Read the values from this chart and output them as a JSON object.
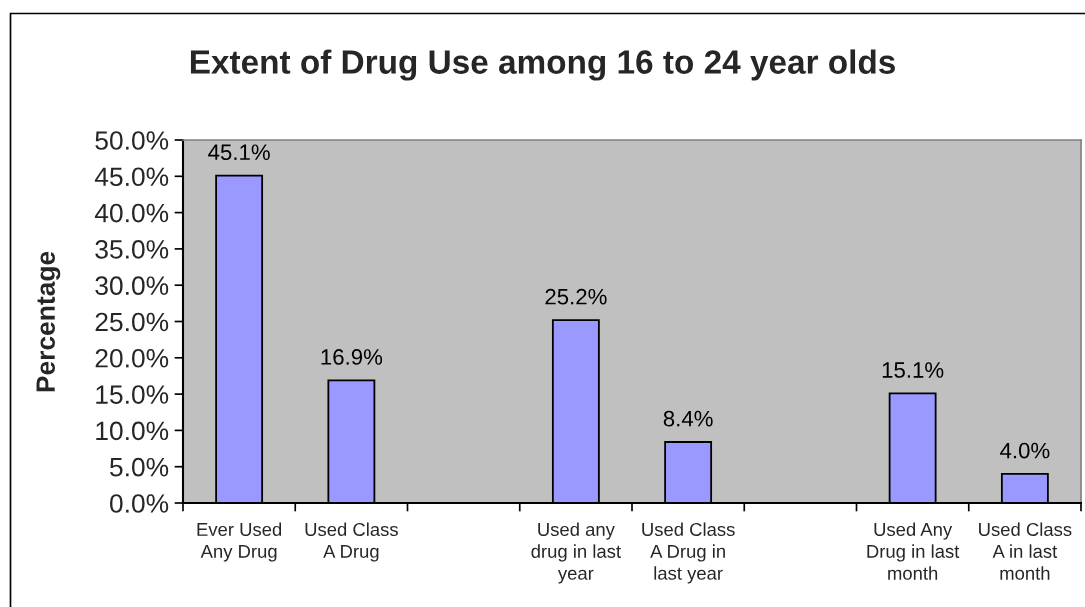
{
  "chart_data": {
    "type": "bar",
    "title": "Extent of Drug Use among 16 to 24 year olds",
    "ylabel": "Percentage",
    "categories": [
      "Ever Used Any Drug",
      "Used Class A Drug",
      null,
      "Used any drug in last year",
      "Used Class A Drug in last year",
      null,
      "Used Any Drug in last month",
      "Used Class A in last month"
    ],
    "values": [
      45.1,
      16.9,
      null,
      25.2,
      8.4,
      null,
      15.1,
      4.0
    ],
    "color": "#9999ff",
    "value_labels": [
      "45.1%",
      "16.9%",
      null,
      "25.2%",
      "8.4%",
      null,
      "15.1%",
      "4.0%"
    ],
    "ylim": [
      0,
      50
    ],
    "yticks": [
      {
        "value": 0,
        "label": "0.0%"
      },
      {
        "value": 5,
        "label": "5.0%"
      },
      {
        "value": 10,
        "label": "10.0%"
      },
      {
        "value": 15,
        "label": "15.0%"
      },
      {
        "value": 20,
        "label": "20.0%"
      },
      {
        "value": 25,
        "label": "25.0%"
      },
      {
        "value": 30,
        "label": "30.0%"
      },
      {
        "value": 35,
        "label": "35.0%"
      },
      {
        "value": 40,
        "label": "40.0%"
      },
      {
        "value": 45,
        "label": "45.0%"
      },
      {
        "value": 50,
        "label": "50.0%"
      }
    ],
    "grid": false
  }
}
